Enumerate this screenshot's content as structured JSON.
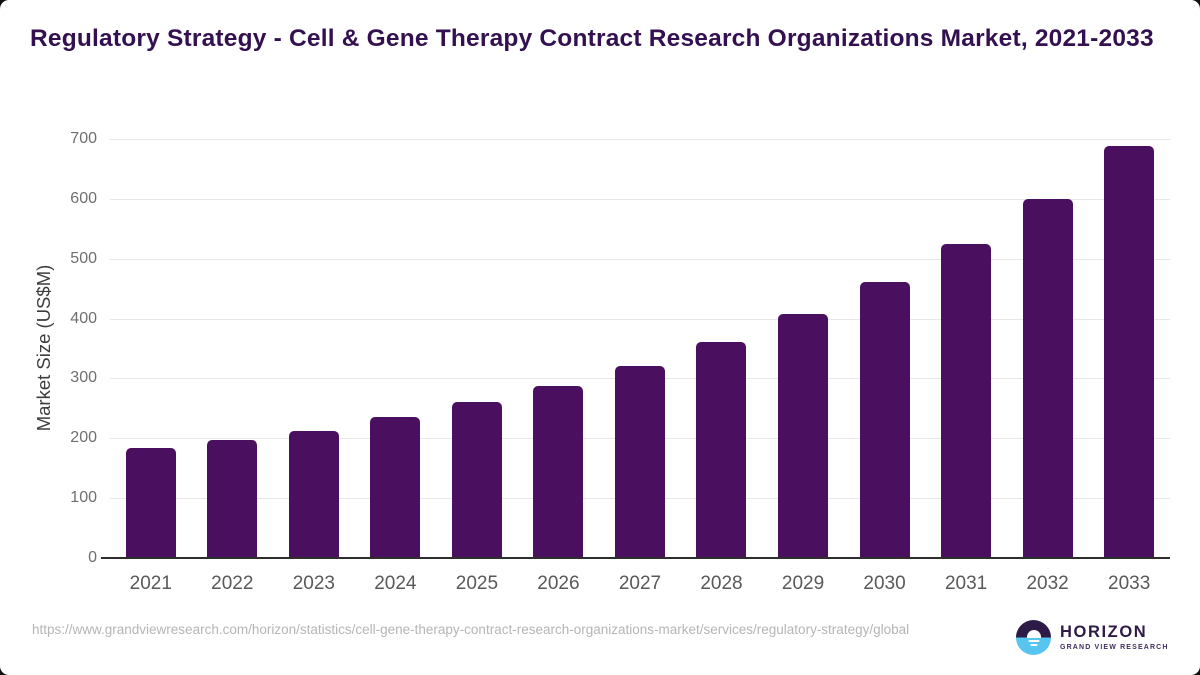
{
  "chart_data": {
    "type": "bar",
    "title": "Regulatory Strategy - Cell & Gene Therapy Contract Research Organizations Market, 2021-2033",
    "categories": [
      "2021",
      "2022",
      "2023",
      "2024",
      "2025",
      "2026",
      "2027",
      "2028",
      "2029",
      "2030",
      "2031",
      "2032",
      "2033"
    ],
    "values": [
      183,
      197,
      213,
      235,
      260,
      288,
      321,
      361,
      408,
      461,
      524,
      600,
      688
    ],
    "xlabel": "",
    "ylabel": "Market Size (US$M)",
    "ylim": [
      0,
      700
    ],
    "yticks": [
      0,
      100,
      200,
      300,
      400,
      500,
      600,
      700
    ],
    "grid": true,
    "legend": false,
    "bar_color": "#4a0f5f"
  },
  "footer": {
    "source_url": "https://www.grandviewresearch.com/horizon/statistics/cell-gene-therapy-contract-research-organizations-market/services/regulatory-strategy/global",
    "logo": {
      "brand": "HORIZON",
      "sub_brand": "GRAND VIEW RESEARCH"
    }
  },
  "colors": {
    "bar": "#4a0f5f",
    "title": "#331150",
    "logo_purple": "#2e1a47",
    "logo_blue": "#56c5f0",
    "url_text": "#b5b5b5",
    "gridline": "#e8e8e8",
    "axis_line": "#2e2e2e"
  }
}
